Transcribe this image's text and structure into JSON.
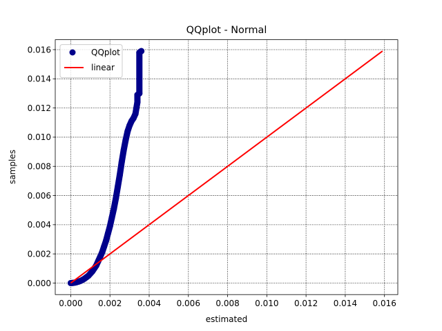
{
  "chart_data": {
    "type": "scatter",
    "title": "QQplot - Normal",
    "xlabel": "estimated",
    "ylabel": "samples",
    "xlim": [
      -0.00079,
      0.01668
    ],
    "ylim": [
      -0.00079,
      0.01668
    ],
    "xticks": [
      0.0,
      0.002,
      0.004,
      0.006,
      0.008,
      0.01,
      0.012,
      0.014,
      0.016
    ],
    "yticks": [
      0.0,
      0.002,
      0.004,
      0.006,
      0.008,
      0.01,
      0.012,
      0.014,
      0.016
    ],
    "xtick_labels": [
      "0.000",
      "0.002",
      "0.004",
      "0.006",
      "0.008",
      "0.010",
      "0.012",
      "0.014",
      "0.016"
    ],
    "ytick_labels": [
      "0.000",
      "0.002",
      "0.004",
      "0.006",
      "0.008",
      "0.010",
      "0.012",
      "0.014",
      "0.016"
    ],
    "grid": true,
    "grid_style": "dotted",
    "legend_position": "top-left",
    "series": [
      {
        "name": "QQplot",
        "kind": "scatter",
        "color": "#00008b",
        "points": [
          [
            0.0,
            0.0
          ],
          [
            0.0001,
            1e-05
          ],
          [
            0.0002,
            3e-05
          ],
          [
            0.0003,
            6e-05
          ],
          [
            0.0004,
            0.0001
          ],
          [
            0.0005,
            0.00015
          ],
          [
            0.0006,
            0.00022
          ],
          [
            0.0007,
            0.0003
          ],
          [
            0.0008,
            0.0004
          ],
          [
            0.0009,
            0.0005
          ],
          [
            0.001,
            0.00065
          ],
          [
            0.0011,
            0.0008
          ],
          [
            0.0012,
            0.001
          ],
          [
            0.0013,
            0.0012
          ],
          [
            0.0014,
            0.0015
          ],
          [
            0.0015,
            0.0018
          ],
          [
            0.0016,
            0.0021
          ],
          [
            0.0017,
            0.0025
          ],
          [
            0.0018,
            0.0029
          ],
          [
            0.0019,
            0.0034
          ],
          [
            0.002,
            0.0039
          ],
          [
            0.0021,
            0.0045
          ],
          [
            0.0022,
            0.0051
          ],
          [
            0.0023,
            0.0058
          ],
          [
            0.0024,
            0.0066
          ],
          [
            0.0025,
            0.0074
          ],
          [
            0.0026,
            0.0083
          ],
          [
            0.0027,
            0.0091
          ],
          [
            0.0028,
            0.0098
          ],
          [
            0.0029,
            0.0104
          ],
          [
            0.003,
            0.0108
          ],
          [
            0.0031,
            0.0111
          ],
          [
            0.0032,
            0.0113
          ],
          [
            0.0033,
            0.0116
          ],
          [
            0.0034,
            0.0124
          ],
          [
            0.0034,
            0.0129
          ],
          [
            0.0035,
            0.013
          ],
          [
            0.0035,
            0.0158
          ],
          [
            0.0036,
            0.0159
          ]
        ]
      },
      {
        "name": "linear",
        "kind": "line",
        "color": "#ff0000",
        "points": [
          [
            0.0,
            0.0
          ],
          [
            0.0159,
            0.0159
          ]
        ]
      }
    ]
  }
}
